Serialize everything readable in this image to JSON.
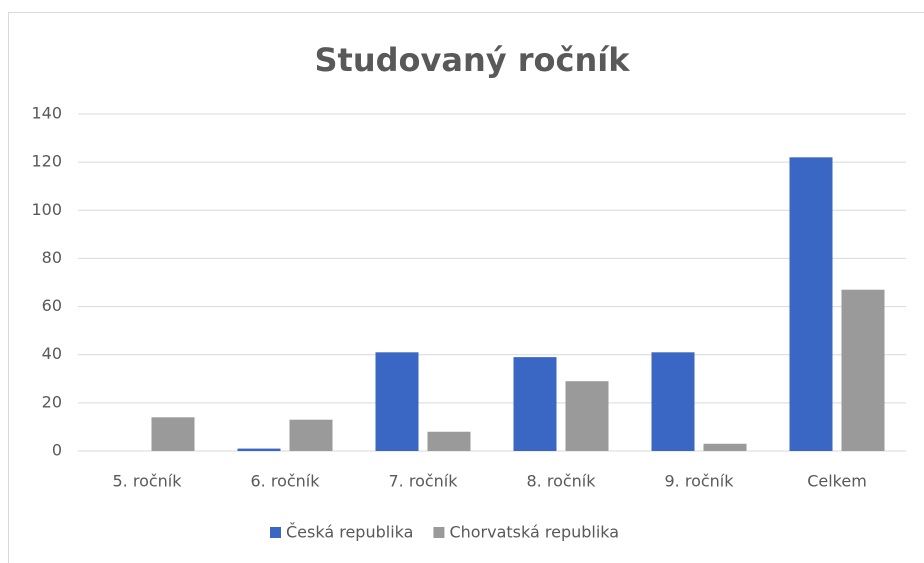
{
  "chart_data": {
    "type": "bar",
    "title": "Studovaný ročník",
    "categories": [
      "5. ročník",
      "6. ročník",
      "7. ročník",
      "8. ročník",
      "9. ročník",
      "Celkem"
    ],
    "series": [
      {
        "name": "Česká republika",
        "color": "#3a66c4",
        "values": [
          0,
          1,
          41,
          39,
          41,
          122
        ]
      },
      {
        "name": "Chorvatská republika",
        "color": "#9a9a9a",
        "values": [
          14,
          13,
          8,
          29,
          3,
          67
        ]
      }
    ],
    "ylim": [
      0,
      140
    ],
    "yticks": [
      0,
      20,
      40,
      60,
      80,
      100,
      120,
      140
    ],
    "grid": true,
    "legend": "bottom"
  }
}
